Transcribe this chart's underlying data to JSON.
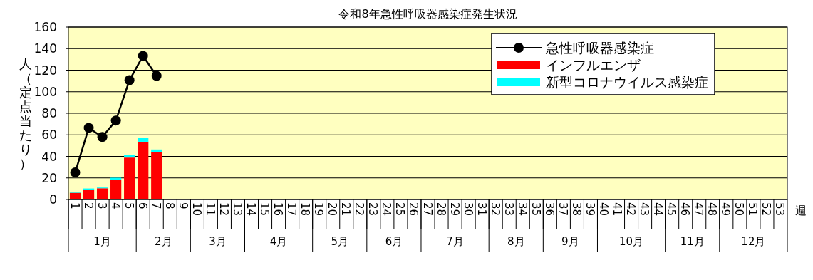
{
  "chart_data": {
    "type": "bar",
    "title": "令和8年急性呼吸器感染症発生状況",
    "xlabel": "週",
    "ylabel": "人（定点当たり）",
    "stacked": true,
    "grid": "y",
    "legend": "top right",
    "marker": "circle",
    "ylim": [
      0,
      160
    ],
    "yticks": [
      0,
      20,
      40,
      60,
      80,
      100,
      120,
      140,
      160
    ],
    "categories": [
      "1",
      "2",
      "3",
      "4",
      "5",
      "6",
      "7",
      "8",
      "9",
      "10",
      "11",
      "12",
      "13",
      "14",
      "15",
      "16",
      "17",
      "18",
      "19",
      "20",
      "21",
      "22",
      "23",
      "24",
      "25",
      "26",
      "27",
      "28",
      "29",
      "30",
      "31",
      "32",
      "33",
      "34",
      "35",
      "36",
      "37",
      "38",
      "39",
      "40",
      "41",
      "42",
      "43",
      "44",
      "45",
      "46",
      "47",
      "48",
      "49",
      "50",
      "51",
      "52",
      "53"
    ],
    "series": [
      {
        "name": "急性呼吸器感染症",
        "type": "line",
        "color": "#000000",
        "values": [
          25.1,
          66.4,
          58,
          73.3,
          110.7,
          133.3,
          114.7,
          null,
          null,
          null,
          null,
          null,
          null,
          null,
          null,
          null,
          null,
          null,
          null,
          null,
          null,
          null,
          null,
          null,
          null,
          null,
          null,
          null,
          null,
          null,
          null,
          null,
          null,
          null,
          null,
          null,
          null,
          null,
          null,
          null,
          null,
          null,
          null,
          null,
          null,
          null,
          null,
          null,
          null,
          null,
          null,
          null,
          null
        ]
      },
      {
        "name": "インフルエンザ",
        "color": "#ff0000",
        "values": [
          6.2,
          9.1,
          10.4,
          18.4,
          38.9,
          53.6,
          44.2,
          null,
          null,
          null,
          null,
          null,
          null,
          null,
          null,
          null,
          null,
          null,
          null,
          null,
          null,
          null,
          null,
          null,
          null,
          null,
          null,
          null,
          null,
          null,
          null,
          null,
          null,
          null,
          null,
          null,
          null,
          null,
          null,
          null,
          null,
          null,
          null,
          null,
          null,
          null,
          null,
          null,
          null,
          null,
          null,
          null,
          null
        ]
      },
      {
        "name": "新型コロナウイルス感染症",
        "color": "#00ffff",
        "values": [
          0.9,
          1.1,
          0.7,
          1.8,
          2.2,
          3.5,
          2.2,
          null,
          null,
          null,
          null,
          null,
          null,
          null,
          null,
          null,
          null,
          null,
          null,
          null,
          null,
          null,
          null,
          null,
          null,
          null,
          null,
          null,
          null,
          null,
          null,
          null,
          null,
          null,
          null,
          null,
          null,
          null,
          null,
          null,
          null,
          null,
          null,
          null,
          null,
          null,
          null,
          null,
          null,
          null,
          null,
          null,
          null
        ]
      }
    ],
    "annotations": [
      "1月",
      "2月",
      "3月",
      "4月",
      "5月",
      "6月",
      "7月",
      "8月",
      "9月",
      "10月",
      "11月",
      "12月"
    ]
  }
}
